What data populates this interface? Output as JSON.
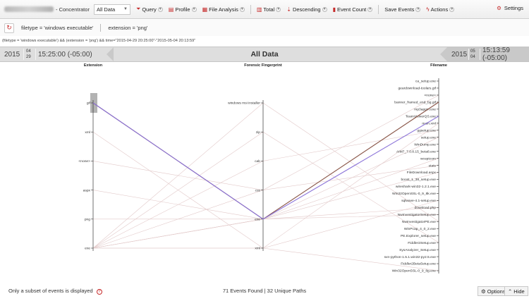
{
  "toolbar": {
    "app_suffix": "- Concentrator",
    "dataset_select": "All Data",
    "buttons": [
      {
        "label": "Query",
        "icon": "funnel-icon"
      },
      {
        "label": "Profile",
        "icon": "profile-icon"
      },
      {
        "label": "File Analysis",
        "icon": "file-analysis-icon"
      },
      {
        "label": "Total",
        "icon": "total-icon"
      },
      {
        "label": "Descending",
        "icon": "sort-descending-icon"
      },
      {
        "label": "Event Count",
        "icon": "event-count-icon"
      },
      {
        "label": "Save Events",
        "icon": "save-events-icon"
      },
      {
        "label": "Actions",
        "icon": "lightning-icon"
      }
    ],
    "settings_label": "Settings"
  },
  "filters": {
    "chips": [
      "filetype = 'windows executable'",
      "extension = 'png'"
    ]
  },
  "query_line": "(filetype = 'windows executable') && (extension = 'png') && time=\"2015-04-29 20:25:00\"-\"2015-05-04 20:13:59\"",
  "timebar": {
    "start_year": "2015",
    "start_month": "04",
    "start_day": "29",
    "start_time": "15:25:00 (-05:00)",
    "title": "All Data",
    "end_year": "2015",
    "end_month": "05",
    "end_day": "04",
    "end_time": "15:13:59 (-05:00)"
  },
  "chart_data": {
    "type": "parallel-coordinates",
    "axes": [
      {
        "title": "Extension",
        "ticks": [
          "gif",
          "xml",
          "<none>",
          "aspx",
          "png",
          "exe"
        ]
      },
      {
        "title": "Forensic Fingerprint",
        "ticks": [
          "windows msi installer",
          "zip",
          "cab",
          "css",
          "exe",
          "xml"
        ]
      },
      {
        "title": "Filename",
        "ticks": [
          "ca_setup.exe",
          "geardownload-toolars.gif",
          "<none>",
          "banner_framed_end_bg.gif",
          "mp3appin.exe",
          "TeamViewerQS.exe",
          "main.xml",
          "ggsetup.exe",
          "setup.exe",
          "WinDump.exe",
          "AIM7_7.0.8.15_beta8.exe",
          "wceptcom",
          "stats",
          "FileDownload.aspx",
          "boost_1_38_setup.exe",
          "wireshark-win32-1.2.1.exe",
          "Win32OpenSSL-0_9_8k.exe",
          "sqlwave-4.1-setup.exe",
          "download.php",
          "NwInvestigatorSetup.exe",
          "NwInvestigatorPE.exe",
          "WinPcap_4_0_2.exe",
          "PE.Explorer_setup.exe",
          "Fiddler2Setup.exe",
          "SysAnalyzer_Setup.exe",
          "svn-python-1.5.1.win32-py2.5.exe",
          "Fiddler2BetaSetup.exe",
          "Win32OpenSSL-0_9_8g.exe"
        ]
      }
    ],
    "highlight_paths": [
      {
        "values": [
          "gif",
          "exe",
          "banner_framed_end_bg.gif"
        ],
        "color": "#8a5648"
      },
      {
        "values": [
          "gif",
          "exe",
          "TeamViewerQS.exe"
        ],
        "color": "#8a72d8"
      }
    ],
    "faint_paths": [
      [
        "exe",
        "exe",
        "NwInvestigatorSetup.exe"
      ],
      [
        "exe",
        "xml",
        "Win32OpenSSL-0_9_8g.exe"
      ],
      [
        "exe",
        "windows msi installer",
        "NwInvestigatorPE.exe"
      ],
      [
        "exe",
        "zip",
        "Fiddler2Setup.exe"
      ],
      [
        "exe",
        "exe",
        "setup.exe"
      ],
      [
        "exe",
        "xml",
        "sqlwave-4.1-setup.exe"
      ],
      [
        "exe",
        "cab",
        "ggsetup.exe"
      ],
      [
        "png",
        "exe",
        "wceptcom"
      ],
      [
        "aspx",
        "exe",
        "FileDownload.aspx"
      ],
      [
        "<none>",
        "css",
        "<none>"
      ],
      [
        "xml",
        "xml",
        "main.xml"
      ],
      [
        "exe",
        "exe",
        "download.php"
      ],
      [
        "exe",
        "css",
        "stats"
      ]
    ],
    "faint_color": "#e2c9c9"
  },
  "footer": {
    "subset_text": "Only a subset of events is displayed",
    "stats_text": "71 Events Found | 32 Unique Paths",
    "options_label": "Options",
    "hide_label": "Hide"
  }
}
